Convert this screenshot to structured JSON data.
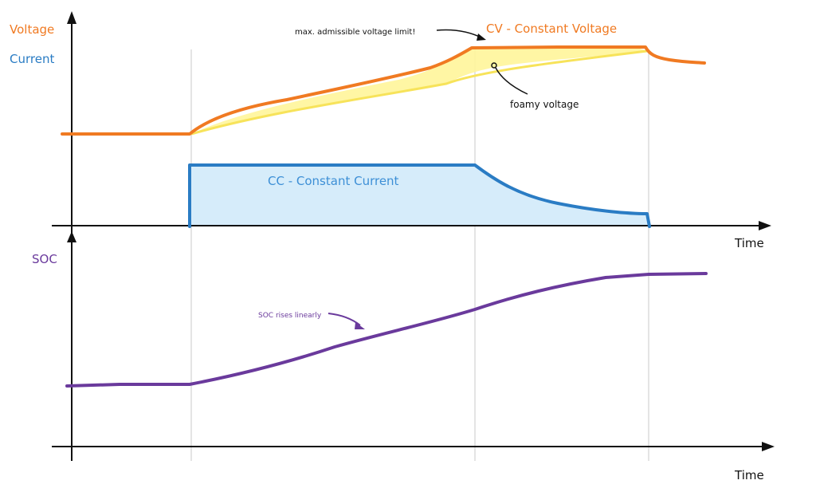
{
  "labels": {
    "voltage": "Voltage",
    "current": "Current",
    "soc": "SOC",
    "time_top": "Time",
    "time_bottom": "Time"
  },
  "annotations": {
    "cv": "CV - Constant Voltage",
    "cc": "CC - Constant Current",
    "max_voltage": "max. admissible voltage limit!",
    "foamy_voltage": "foamy voltage",
    "soc_rises": "SOC rises linearly"
  },
  "colors": {
    "voltage": "#f07a22",
    "current": "#2a7cc4",
    "current_fill": "#d6ecfa",
    "soc": "#6a3a9c",
    "foamy_fill": "#fff59a",
    "foamy_line": "#f7e35a",
    "axis": "#111111",
    "guide": "#dcdcdc"
  }
}
